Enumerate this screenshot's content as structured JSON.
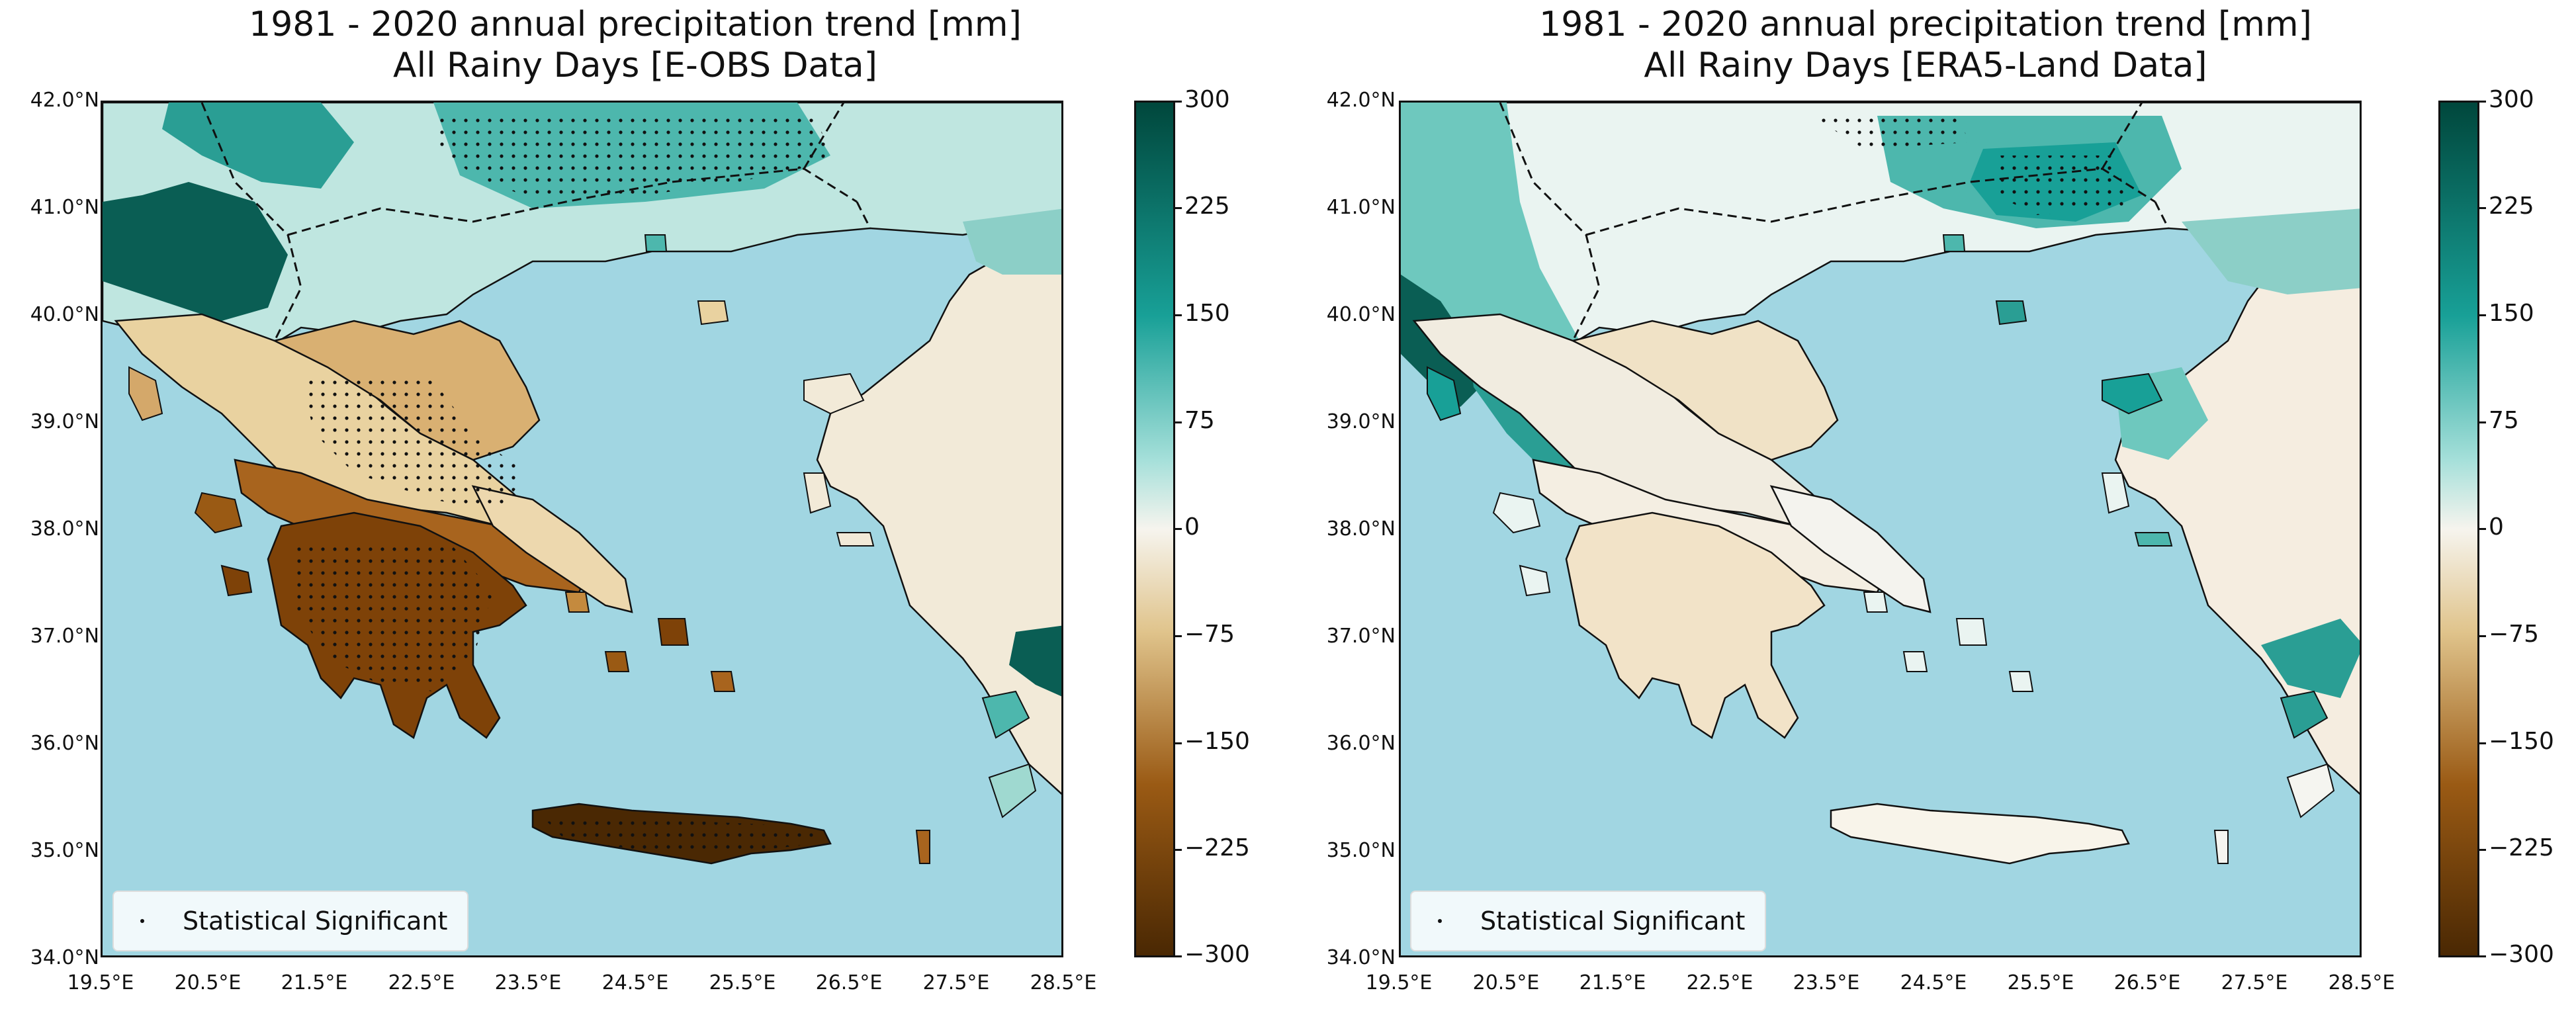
{
  "colors": {
    "sea": "#a1d6e2",
    "brown_dark": "#4a2803",
    "brown": "#9a5a14",
    "tan": "#e0c48c",
    "neutral": "#f6f4ee",
    "teal_light": "#a6e0da",
    "teal": "#18a097",
    "teal_dark": "#00473c"
  },
  "left_panel": {
    "title_line1": "1981 - 2020 annual precipitation trend [mm]",
    "title_line2": "All Rainy Days   [E-OBS Data]",
    "legend_label": "Statistical Significant",
    "chart_data": {
      "type": "heatmap",
      "region": "Greece",
      "source": "E-OBS",
      "lon_range": [
        19.5,
        28.5
      ],
      "lat_range": [
        34.0,
        42.0
      ],
      "value_range": [
        -300,
        300
      ],
      "regional_trends_mm": {
        "Albania / northwest": 250,
        "northern Balkans": 120,
        "Central Greece": -90,
        "Peloponnese": -230,
        "Crete": -270,
        "Aegean islands": -20,
        "Western Turkey": 30,
        "Southwest Turkey coast": 280
      }
    }
  },
  "right_panel": {
    "title_line1": "1981 - 2020 annual precipitation trend [mm]",
    "title_line2": "All Rainy Days   [ERA5-Land Data]",
    "legend_label": "Statistical Significant",
    "chart_data": {
      "type": "heatmap",
      "region": "Greece",
      "source": "ERA5-Land",
      "lon_range": [
        19.5,
        28.5
      ],
      "lat_range": [
        34.0,
        42.0
      ],
      "value_range": [
        -300,
        300
      ],
      "regional_trends_mm": {
        "Albania / northwest coast": 260,
        "northern Balkans": 40,
        "Thrace / Turkey north": 180,
        "Central Greece": -20,
        "Peloponnese": -40,
        "Crete": 0,
        "Western Turkey": 10,
        "Southwest Turkey coast": 150
      }
    }
  },
  "axes": {
    "lat_labels": [
      "42.0°N",
      "41.0°N",
      "40.0°N",
      "39.0°N",
      "38.0°N",
      "37.0°N",
      "36.0°N",
      "35.0°N",
      "34.0°N"
    ],
    "lon_labels": [
      "19.5°E",
      "20.5°E",
      "21.5°E",
      "22.5°E",
      "23.5°E",
      "24.5°E",
      "25.5°E",
      "26.5°E",
      "27.5°E",
      "28.5°E"
    ]
  },
  "colorbar": {
    "ticks": [
      "300",
      "225",
      "150",
      "75",
      "0",
      "−75",
      "−150",
      "−225",
      "−300"
    ]
  }
}
